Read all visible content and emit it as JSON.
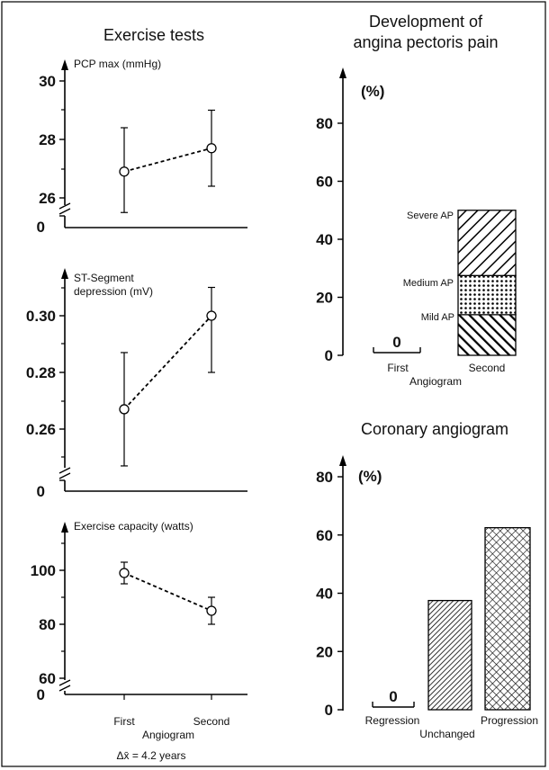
{
  "titles": {
    "left": "Exercise tests",
    "right_top_line1": "Development of",
    "right_top_line2": "angina pectoris pain",
    "right_bottom": "Coronary angiogram"
  },
  "footer": {
    "delta": "Δx̄ = 4.2 years"
  },
  "chart_data": [
    {
      "type": "line",
      "ylabel": "PCP max (mmHg)",
      "ylim": [
        26,
        30
      ],
      "yticks": [
        "26",
        "28",
        "30"
      ],
      "zero_label": "0",
      "x": [
        "First",
        "Second"
      ],
      "series": [
        {
          "values": [
            26.9,
            27.7
          ],
          "err_low": [
            25.5,
            26.4
          ],
          "err_high": [
            28.4,
            29.0
          ]
        }
      ]
    },
    {
      "type": "line",
      "ylabel_line1": "ST-Segment",
      "ylabel_line2": "depression (mV)",
      "ylim": [
        0.25,
        0.31
      ],
      "yticks": [
        "0.26",
        "0.28",
        "0.30"
      ],
      "zero_label": "0",
      "x": [
        "First",
        "Second"
      ],
      "series": [
        {
          "values": [
            0.267,
            0.3
          ],
          "err_low": [
            0.247,
            0.28
          ],
          "err_high": [
            0.287,
            0.31
          ]
        }
      ]
    },
    {
      "type": "line",
      "ylabel": "Exercise capacity (watts)",
      "ylim": [
        55,
        110
      ],
      "yticks": [
        "60",
        "80",
        "100"
      ],
      "zero_label": "0",
      "x": [
        "First",
        "Second"
      ],
      "xlabel": "Angiogram",
      "series": [
        {
          "values": [
            99,
            85
          ],
          "err_low": [
            95,
            80
          ],
          "err_high": [
            103,
            90
          ]
        }
      ]
    },
    {
      "type": "bar",
      "stacked": true,
      "ylabel": "(%)",
      "ylim": [
        0,
        80
      ],
      "yticks": [
        "0",
        "20",
        "40",
        "60",
        "80"
      ],
      "xlabel": "Angiogram",
      "categories": [
        "First",
        "Second"
      ],
      "first_value_label": "0",
      "series": [
        {
          "name": "Mild AP",
          "values": [
            0,
            14
          ]
        },
        {
          "name": "Medium AP",
          "values": [
            0,
            13.5
          ]
        },
        {
          "name": "Severe AP",
          "values": [
            0,
            22.5
          ]
        }
      ]
    },
    {
      "type": "bar",
      "ylabel": "(%)",
      "ylim": [
        0,
        80
      ],
      "yticks": [
        "0",
        "20",
        "40",
        "60",
        "80"
      ],
      "categories": [
        "Regression",
        "Unchanged",
        "Progression"
      ],
      "values": [
        0,
        37.5,
        62.5
      ],
      "first_value_label": "0"
    }
  ]
}
